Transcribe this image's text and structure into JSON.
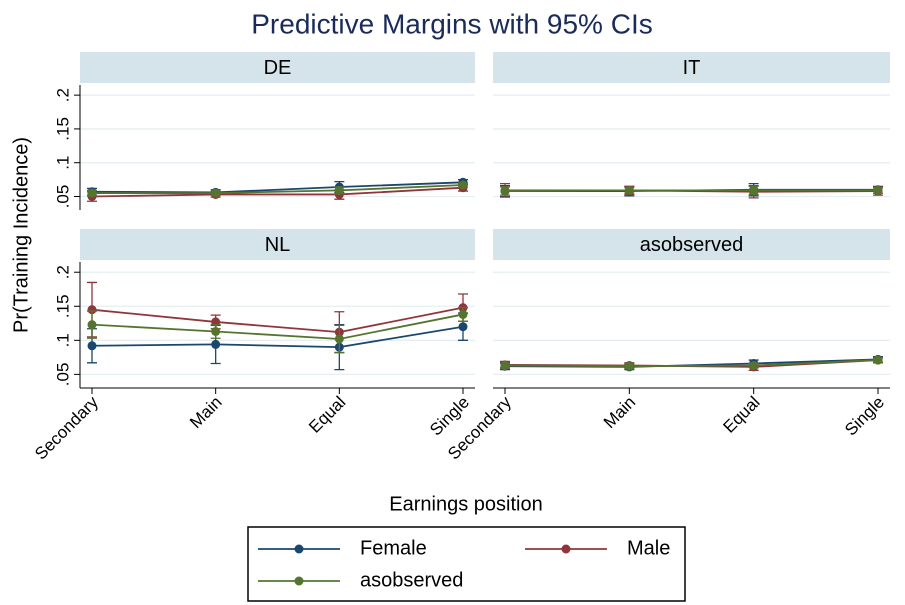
{
  "chart_data": {
    "type": "line",
    "title": "Predictive Margins with 95% CIs",
    "x_label": "Earnings position",
    "y_label": "Pr(Training Incidence)",
    "categories": [
      "Secondary",
      "Main",
      "Equal",
      "Single"
    ],
    "ylim": [
      0.03,
      0.215
    ],
    "yticks": [
      {
        "value": 0.05,
        "label": ".05"
      },
      {
        "value": 0.1,
        "label": ".1"
      },
      {
        "value": 0.15,
        "label": ".15"
      },
      {
        "value": 0.2,
        "label": ".2"
      }
    ],
    "grid": true,
    "series": [
      {
        "name": "Female",
        "color": "#1a476f"
      },
      {
        "name": "Male",
        "color": "#90353b"
      },
      {
        "name": "asobserved",
        "color": "#55752f"
      }
    ],
    "panels": [
      {
        "title": "DE",
        "values": [
          [
            0.057,
            0.056,
            0.064,
            0.071
          ],
          [
            0.05,
            0.053,
            0.053,
            0.063
          ],
          [
            0.055,
            0.055,
            0.059,
            0.067
          ]
        ],
        "errors": [
          [
            0.005,
            0.004,
            0.008,
            0.004
          ],
          [
            0.007,
            0.004,
            0.007,
            0.005
          ],
          [
            0.004,
            0.003,
            0.005,
            0.003
          ]
        ]
      },
      {
        "title": "IT",
        "values": [
          [
            0.058,
            0.058,
            0.06,
            0.06
          ],
          [
            0.059,
            0.059,
            0.057,
            0.058
          ],
          [
            0.058,
            0.059,
            0.059,
            0.059
          ]
        ],
        "errors": [
          [
            0.008,
            0.007,
            0.009,
            0.005
          ],
          [
            0.01,
            0.006,
            0.009,
            0.006
          ],
          [
            0.006,
            0.004,
            0.006,
            0.004
          ]
        ]
      },
      {
        "title": "NL",
        "values": [
          [
            0.092,
            0.094,
            0.09,
            0.12
          ],
          [
            0.145,
            0.127,
            0.112,
            0.148
          ],
          [
            0.123,
            0.113,
            0.102,
            0.138
          ]
        ],
        "errors": [
          [
            0.025,
            0.028,
            0.033,
            0.02
          ],
          [
            0.04,
            0.01,
            0.03,
            0.02
          ],
          [
            0.02,
            0.01,
            0.02,
            0.01
          ]
        ]
      },
      {
        "title": "asobserved",
        "values": [
          [
            0.062,
            0.061,
            0.066,
            0.072
          ],
          [
            0.064,
            0.063,
            0.061,
            0.071
          ],
          [
            0.063,
            0.062,
            0.063,
            0.071
          ]
        ],
        "errors": [
          [
            0.005,
            0.004,
            0.005,
            0.004
          ],
          [
            0.005,
            0.004,
            0.005,
            0.004
          ],
          [
            0.003,
            0.003,
            0.003,
            0.003
          ]
        ]
      }
    ]
  }
}
